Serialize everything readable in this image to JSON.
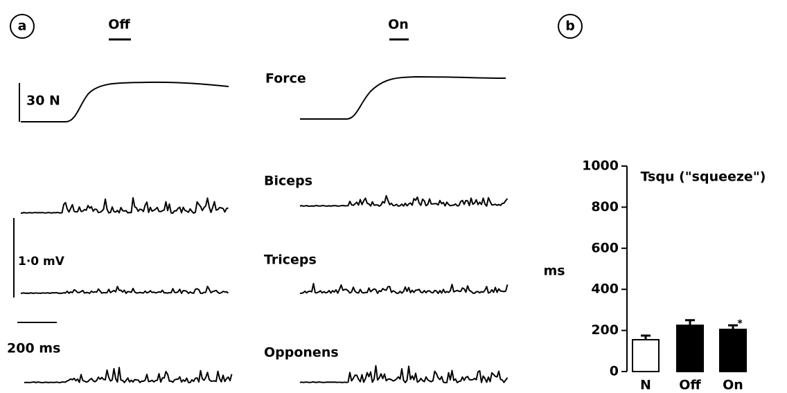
{
  "panel_a": {
    "label": "a",
    "conditions": [
      "Off",
      "On"
    ],
    "force_scale": "30 N",
    "emg_scale": "1·0 mV",
    "time_scale": "200 ms",
    "traces": [
      "Force",
      "Biceps",
      "Triceps",
      "Opponens"
    ]
  },
  "chart_data": {
    "type": "bar",
    "panel_label": "b",
    "title": "Tsqu (\"squeeze\")",
    "y_label": "ms",
    "categories": [
      "N",
      "Off",
      "On"
    ],
    "values": [
      155,
      225,
      205
    ],
    "errors": [
      20,
      25,
      20
    ],
    "colors": [
      "#ffffff",
      "#000000",
      "#000000"
    ],
    "annotation": "*",
    "ylim": [
      0,
      1000
    ],
    "yticks": [
      0,
      200,
      400,
      600,
      800,
      1000
    ]
  }
}
